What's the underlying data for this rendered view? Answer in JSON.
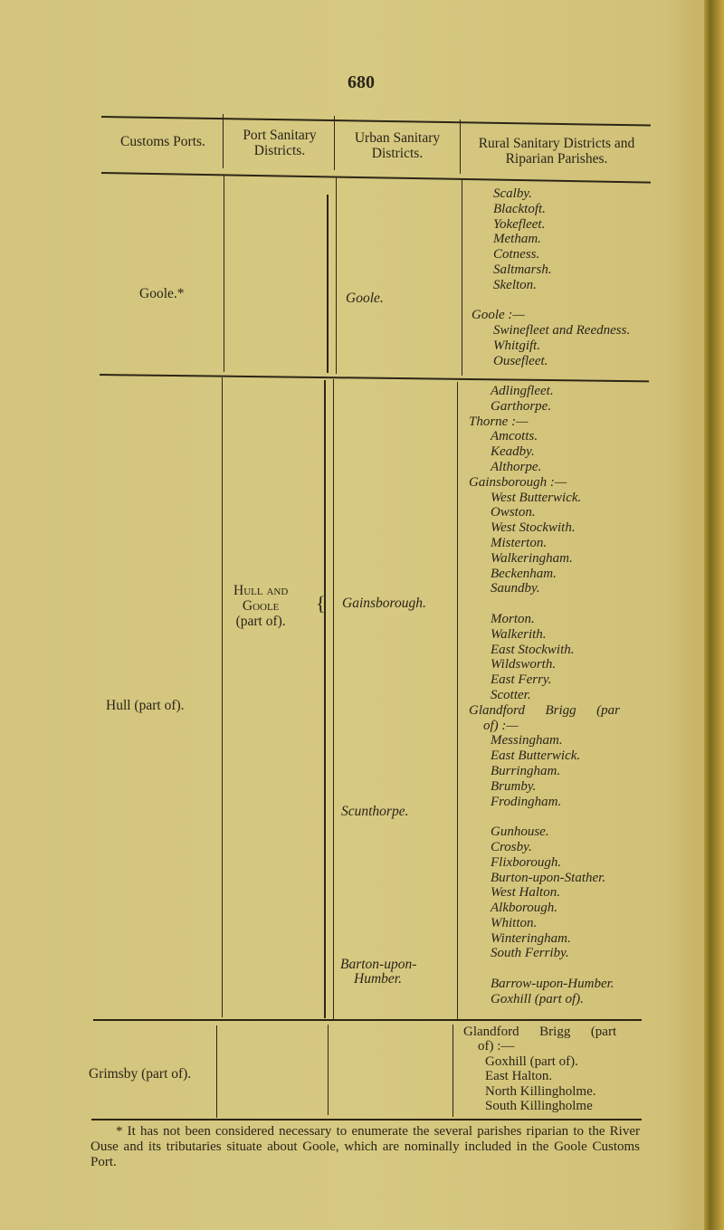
{
  "page_number": "680",
  "headers": {
    "customs_ports": "Customs Ports.",
    "port_sanitary": "Port Sanitary Districts.",
    "urban_sanitary": "Urban Sanitary Districts.",
    "rural_sanitary": "Rural Sanitary Districts and Riparian Parishes."
  },
  "rows": [
    {
      "port": "Goole.*",
      "urban": [
        "Goole."
      ],
      "rural": [
        [
          {
            "t": "Scalby.",
            "i": 1
          },
          {
            "t": "Blacktoft.",
            "i": 1
          },
          {
            "t": "Yokefleet.",
            "i": 1
          },
          {
            "t": "Metham.",
            "i": 1
          },
          {
            "t": "Cotness.",
            "i": 1
          },
          {
            "t": "Saltmarsh.",
            "i": 1
          },
          {
            "t": "Skelton.",
            "i": 1
          }
        ],
        [
          {
            "t": "Goole :—",
            "i": 0
          },
          {
            "t": "Swinefleet and Reedness.",
            "i": 1
          },
          {
            "t": "Whitgift.",
            "i": 1
          },
          {
            "t": "Ousefleet.",
            "i": 1
          }
        ]
      ]
    },
    {
      "port": "Hull (part of).",
      "port_sanitary": [
        "Hull and",
        "Goole",
        "(part of)."
      ],
      "urban": [
        "Gainsborough.",
        "Scunthorpe.",
        "Barton-upon-",
        "Humber."
      ],
      "rural": [
        [
          {
            "t": "Adlingfleet.",
            "i": 1
          },
          {
            "t": "Garthorpe.",
            "i": 1
          },
          {
            "t": "Thorne :—",
            "i": 0
          },
          {
            "t": "Amcotts.",
            "i": 1
          },
          {
            "t": "Keadby.",
            "i": 1
          },
          {
            "t": "Althorpe.",
            "i": 1
          },
          {
            "t": "Gainsborough :—",
            "i": 0
          },
          {
            "t": "West Butterwick.",
            "i": 1
          },
          {
            "t": "Owston.",
            "i": 1
          },
          {
            "t": "West Stockwith.",
            "i": 1
          },
          {
            "t": "Misterton.",
            "i": 1
          },
          {
            "t": "Walkeringham.",
            "i": 1
          },
          {
            "t": "Beckenham.",
            "i": 1
          },
          {
            "t": "Saundby.",
            "i": 1
          }
        ],
        [
          {
            "t": "Morton.",
            "i": 1
          },
          {
            "t": "Walkerith.",
            "i": 1
          },
          {
            "t": "East Stockwith.",
            "i": 1
          },
          {
            "t": "Wildsworth.",
            "i": 1
          },
          {
            "t": "East Ferry.",
            "i": 1
          },
          {
            "t": "Scotter.",
            "i": 1
          },
          {
            "t": "Glandford      Brigg      (par",
            "i": 0
          },
          {
            "t": "of) :—",
            "i": 2
          },
          {
            "t": "Messingham.",
            "i": 1
          },
          {
            "t": "East Butterwick.",
            "i": 1
          },
          {
            "t": "Burringham.",
            "i": 1
          },
          {
            "t": "Brumby.",
            "i": 1
          },
          {
            "t": "Frodingham.",
            "i": 1
          }
        ],
        [
          {
            "t": "Gunhouse.",
            "i": 1
          },
          {
            "t": "Crosby.",
            "i": 1
          },
          {
            "t": "Flixborough.",
            "i": 1
          },
          {
            "t": "Burton-upon-Stather.",
            "i": 1
          },
          {
            "t": "West Halton.",
            "i": 1
          },
          {
            "t": "Alkborough.",
            "i": 1
          },
          {
            "t": "Whitton.",
            "i": 1
          },
          {
            "t": "Winteringham.",
            "i": 1
          },
          {
            "t": "South Ferriby.",
            "i": 1
          }
        ],
        [
          {
            "t": "Barrow-upon-Humber.",
            "i": 1
          },
          {
            "t": "Goxhill (part of).",
            "i": 1
          }
        ]
      ]
    },
    {
      "port": "Grimsby (part of).",
      "rural": [
        [
          {
            "t": "Glandford      Brigg      (part",
            "i": 0
          },
          {
            "t": "of) :—",
            "i": 2
          },
          {
            "t": "Goxhill (part of).",
            "i": 1
          },
          {
            "t": "East Halton.",
            "i": 1
          },
          {
            "t": "North Killingholme.",
            "i": 1
          },
          {
            "t": "South Killingholme",
            "i": 1
          }
        ]
      ]
    }
  ],
  "footnote": "* It has not been considered necessary to enumerate the several parishes riparian to the River Ouse and its tributaries situate about Goole, which are nominally included in the Goole Customs Port."
}
